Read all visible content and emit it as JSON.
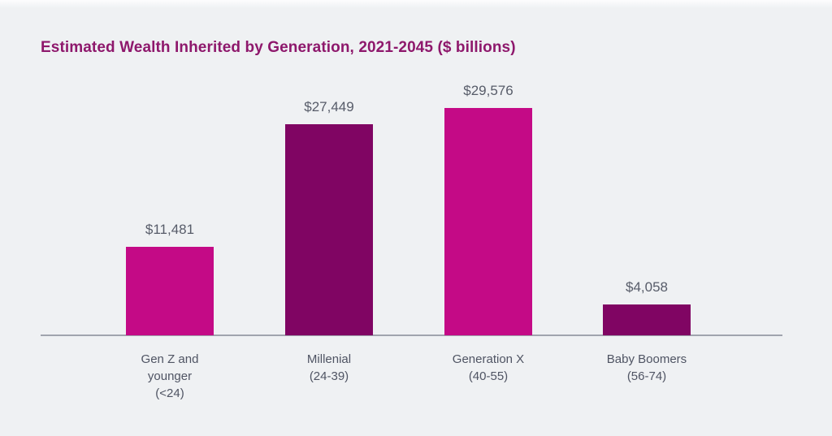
{
  "page": {
    "background_color": "#EFF1F3"
  },
  "chart_data": {
    "type": "bar",
    "title": "Estimated Wealth Inherited by Generation, 2021-2045 ($ billions)",
    "title_color": "#8E186C",
    "categories": [
      "Gen Z and younger (<24)",
      "Millenial (24-39)",
      "Generation X (40-55)",
      "Baby Boomers (56-74)"
    ],
    "category_label_lines": [
      [
        "Gen Z and",
        "younger",
        "(<24)"
      ],
      [
        "Millenial",
        "(24-39)"
      ],
      [
        "Generation X",
        "(40-55)"
      ],
      [
        "Baby Boomers",
        "(56-74)"
      ]
    ],
    "values": [
      11481,
      27449,
      29576,
      4058
    ],
    "value_labels": [
      "$11,481",
      "$27,449",
      "$29,576",
      "$4,058"
    ],
    "bar_colors": [
      "#C40A86",
      "#800563",
      "#C40A86",
      "#800563"
    ],
    "value_label_color": "#575C69",
    "category_label_color": "#4F5463",
    "axis_color": "#A0A4AE",
    "xlabel": "",
    "ylabel": "",
    "ylim": [
      0,
      29576
    ],
    "grid": false,
    "legend": false
  }
}
